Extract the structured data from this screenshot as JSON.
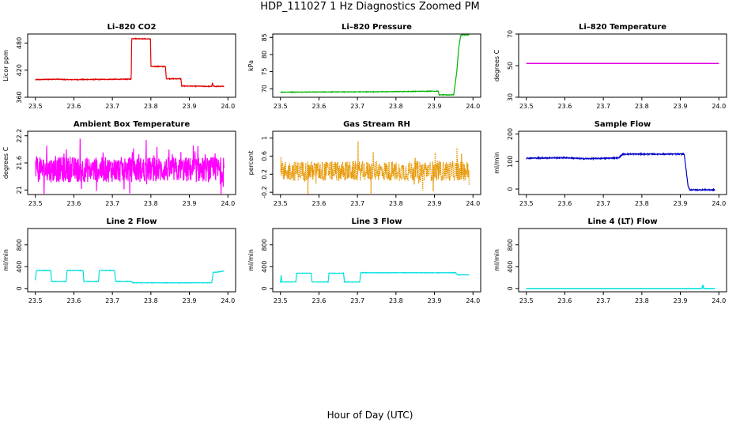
{
  "page": {
    "title": "HDP_111027  1 Hz Diagnostics Zoomed PM",
    "xlabel": "Hour of Day (UTC)"
  },
  "chart_data": [
    {
      "type": "line",
      "title": "Li–820 CO2",
      "ylabel": "Licor ppm",
      "color": "#e00000",
      "xlim": [
        23.5,
        24.0
      ],
      "ylim": [
        360,
        500
      ],
      "xticks": [
        "23.5",
        "23.6",
        "23.7",
        "23.8",
        "23.9",
        "24.0"
      ],
      "yticks": [
        360,
        420,
        480
      ],
      "noise": 0.8,
      "x": [
        23.5,
        23.56,
        23.58,
        23.749,
        23.75,
        23.799,
        23.8,
        23.838,
        23.84,
        23.878,
        23.88,
        23.958,
        23.96,
        23.962,
        23.99
      ],
      "y": [
        399,
        400,
        399,
        400,
        490,
        489,
        428,
        428,
        401,
        401,
        385,
        384,
        392,
        384,
        384
      ]
    },
    {
      "type": "line",
      "title": "Li–820 Pressure",
      "ylabel": "kPa",
      "color": "#00b400",
      "xlim": [
        23.5,
        24.0
      ],
      "ylim": [
        67.5,
        86
      ],
      "xticks": [
        "23.5",
        "23.6",
        "23.7",
        "23.8",
        "23.9",
        "24.0"
      ],
      "yticks": [
        70,
        75,
        80,
        85
      ],
      "noise": 0.08,
      "x": [
        23.5,
        23.75,
        23.91,
        23.912,
        23.95,
        23.958,
        23.963,
        23.968,
        23.97,
        23.99
      ],
      "y": [
        69,
        69.1,
        69.3,
        68.2,
        68.2,
        75,
        82,
        85.5,
        85.7,
        85.7
      ]
    },
    {
      "type": "line",
      "title": "Li–820 Temperature",
      "ylabel": "degrees C",
      "color": "#e000e0",
      "xlim": [
        23.5,
        24.0
      ],
      "ylim": [
        30,
        70
      ],
      "xticks": [
        "23.5",
        "23.6",
        "23.7",
        "23.8",
        "23.9",
        "24.0"
      ],
      "yticks": [
        30,
        50,
        70
      ],
      "noise": 0,
      "x": [
        23.5,
        24.0
      ],
      "y": [
        51.4,
        51.4
      ]
    },
    {
      "type": "line",
      "title": "Ambient Box Temperature",
      "ylabel": "degrees C",
      "color": "#ff00ff",
      "xlim": [
        23.5,
        24.0
      ],
      "ylim": [
        20.9,
        22.3
      ],
      "xticks": [
        "23.5",
        "23.6",
        "23.7",
        "23.8",
        "23.9",
        "24.0"
      ],
      "yticks": [
        21.0,
        21.6,
        22.2
      ],
      "noise": 0.28,
      "spikes": 0.5,
      "x": [
        23.5,
        23.99
      ],
      "y": [
        21.45,
        21.45
      ]
    },
    {
      "type": "line",
      "title": "Gas Stream RH",
      "ylabel": "percent",
      "color": "#e69600",
      "xlim": [
        23.5,
        24.0
      ],
      "ylim": [
        -0.25,
        1.15
      ],
      "xticks": [
        "23.5",
        "23.6",
        "23.7",
        "23.8",
        "23.9",
        "24.0"
      ],
      "yticks": [
        -0.2,
        0.2,
        0.6,
        1.0
      ],
      "noise": 0.22,
      "spikes": 0.45,
      "dotted": true,
      "x": [
        23.5,
        23.99
      ],
      "y": [
        0.27,
        0.27
      ]
    },
    {
      "type": "line",
      "title": "Sample Flow",
      "ylabel": "ml/min",
      "color": "#0000c8",
      "xlim": [
        23.5,
        24.0
      ],
      "ylim": [
        -20,
        210
      ],
      "xticks": [
        "23.5",
        "23.6",
        "23.7",
        "23.8",
        "23.9",
        "24.0"
      ],
      "yticks": [
        0,
        100,
        200
      ],
      "noise": 2,
      "x": [
        23.5,
        23.6,
        23.65,
        23.74,
        23.75,
        23.91,
        23.92,
        23.925,
        23.99
      ],
      "y": [
        112,
        114,
        110,
        113,
        127,
        127,
        10,
        -3,
        -3
      ]
    },
    {
      "type": "line",
      "title": "Line 2 Flow",
      "ylabel": "ml/min",
      "color": "#00e0e0",
      "xlim": [
        23.5,
        24.0
      ],
      "ylim": [
        -60,
        1100
      ],
      "xticks": [
        "23.5",
        "23.6",
        "23.7",
        "23.8",
        "23.9",
        "24.0"
      ],
      "yticks": [
        0,
        400,
        800
      ],
      "noise": 4,
      "x": [
        23.5,
        23.503,
        23.54,
        23.542,
        23.58,
        23.582,
        23.624,
        23.626,
        23.664,
        23.666,
        23.706,
        23.708,
        23.75,
        23.752,
        23.958,
        23.962,
        23.97,
        23.99
      ],
      "y": [
        150,
        330,
        330,
        130,
        130,
        330,
        330,
        130,
        130,
        330,
        330,
        130,
        130,
        105,
        105,
        300,
        300,
        320
      ]
    },
    {
      "type": "line",
      "title": "Line 3 Flow",
      "ylabel": "ml/min",
      "color": "#00e0e0",
      "xlim": [
        23.5,
        24.0
      ],
      "ylim": [
        -60,
        1100
      ],
      "xticks": [
        "23.5",
        "23.6",
        "23.7",
        "23.8",
        "23.9",
        "24.0"
      ],
      "yticks": [
        0,
        400,
        800
      ],
      "noise": 4,
      "x": [
        23.5,
        23.502,
        23.503,
        23.54,
        23.542,
        23.58,
        23.582,
        23.624,
        23.626,
        23.664,
        23.666,
        23.706,
        23.708,
        23.955,
        23.96,
        23.99
      ],
      "y": [
        100,
        260,
        120,
        120,
        280,
        280,
        120,
        120,
        280,
        280,
        120,
        120,
        290,
        290,
        250,
        250
      ]
    },
    {
      "type": "line",
      "title": "Line 4 (LT) Flow",
      "ylabel": "ml/min",
      "color": "#00e0e0",
      "xlim": [
        23.5,
        24.0
      ],
      "ylim": [
        -60,
        1100
      ],
      "xticks": [
        "23.5",
        "23.6",
        "23.7",
        "23.8",
        "23.9",
        "24.0"
      ],
      "yticks": [
        0,
        400,
        800
      ],
      "noise": 0,
      "x": [
        23.5,
        23.957,
        23.958,
        23.959,
        23.99
      ],
      "y": [
        0,
        0,
        80,
        0,
        0
      ]
    }
  ]
}
